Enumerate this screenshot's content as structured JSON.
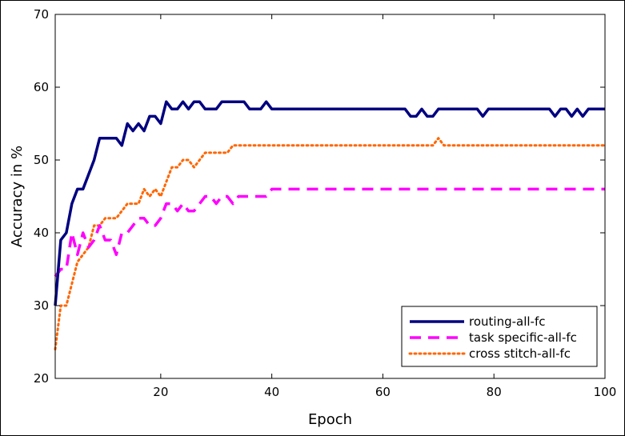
{
  "chart_data": {
    "type": "line",
    "title": "",
    "xlabel": "Epoch",
    "ylabel": "Accuracy in %",
    "xlim": [
      1,
      100
    ],
    "ylim": [
      20,
      70
    ],
    "xticks": [
      20,
      40,
      60,
      80,
      100
    ],
    "yticks": [
      20,
      30,
      40,
      50,
      60,
      70
    ],
    "grid": false,
    "legend_position": "bottom-right",
    "x": [
      1,
      2,
      3,
      4,
      5,
      6,
      7,
      8,
      9,
      10,
      11,
      12,
      13,
      14,
      15,
      16,
      17,
      18,
      19,
      20,
      21,
      22,
      23,
      24,
      25,
      26,
      27,
      28,
      29,
      30,
      31,
      32,
      33,
      34,
      35,
      36,
      37,
      38,
      39,
      40,
      41,
      42,
      43,
      44,
      45,
      46,
      47,
      48,
      49,
      50,
      51,
      52,
      53,
      54,
      55,
      56,
      57,
      58,
      59,
      60,
      61,
      62,
      63,
      64,
      65,
      66,
      67,
      68,
      69,
      70,
      71,
      72,
      73,
      74,
      75,
      76,
      77,
      78,
      79,
      80,
      81,
      82,
      83,
      84,
      85,
      86,
      87,
      88,
      89,
      90,
      91,
      92,
      93,
      94,
      95,
      96,
      97,
      98,
      99,
      100
    ],
    "series": [
      {
        "name": "routing-all-fc",
        "color": "#000080",
        "style": "solid",
        "values": [
          30,
          39,
          40,
          44,
          46,
          46,
          48,
          50,
          53,
          53,
          53,
          53,
          52,
          55,
          54,
          55,
          54,
          56,
          56,
          55,
          58,
          57,
          57,
          58,
          57,
          58,
          58,
          57,
          57,
          57,
          58,
          58,
          58,
          58,
          58,
          57,
          57,
          57,
          58,
          57,
          57,
          57,
          57,
          57,
          57,
          57,
          57,
          57,
          57,
          57,
          57,
          57,
          57,
          57,
          57,
          57,
          57,
          57,
          57,
          57,
          57,
          57,
          57,
          57,
          56,
          56,
          57,
          56,
          56,
          57,
          57,
          57,
          57,
          57,
          57,
          57,
          57,
          56,
          57,
          57,
          57,
          57,
          57,
          57,
          57,
          57,
          57,
          57,
          57,
          57,
          56,
          57,
          57,
          56,
          57,
          56,
          57,
          57,
          57,
          57
        ]
      },
      {
        "name": "task specific-all-fc",
        "color": "#ff00ff",
        "style": "dashed",
        "values": [
          34,
          35,
          35,
          40,
          37,
          40,
          38,
          39,
          41,
          39,
          39,
          37,
          40,
          40,
          41,
          42,
          42,
          41,
          41,
          42,
          44,
          44,
          43,
          44,
          43,
          43,
          44,
          45,
          45,
          44,
          45,
          45,
          44,
          45,
          45,
          45,
          45,
          45,
          45,
          46,
          46,
          46,
          46,
          46,
          46,
          46,
          46,
          46,
          46,
          46,
          46,
          46,
          46,
          46,
          46,
          46,
          46,
          46,
          46,
          46,
          46,
          46,
          46,
          46,
          46,
          46,
          46,
          46,
          46,
          46,
          46,
          46,
          46,
          46,
          46,
          46,
          46,
          46,
          46,
          46,
          46,
          46,
          46,
          46,
          46,
          46,
          46,
          46,
          46,
          46,
          46,
          46,
          46,
          46,
          46,
          46,
          46,
          46,
          46,
          46
        ]
      },
      {
        "name": "cross stitch-all-fc",
        "color": "#ff6600",
        "style": "dotted",
        "values": [
          24,
          30,
          30,
          33,
          36,
          37,
          38,
          41,
          41,
          42,
          42,
          42,
          43,
          44,
          44,
          44,
          46,
          45,
          46,
          45,
          47,
          49,
          49,
          50,
          50,
          49,
          50,
          51,
          51,
          51,
          51,
          51,
          52,
          52,
          52,
          52,
          52,
          52,
          52,
          52,
          52,
          52,
          52,
          52,
          52,
          52,
          52,
          52,
          52,
          52,
          52,
          52,
          52,
          52,
          52,
          52,
          52,
          52,
          52,
          52,
          52,
          52,
          52,
          52,
          52,
          52,
          52,
          52,
          52,
          53,
          52,
          52,
          52,
          52,
          52,
          52,
          52,
          52,
          52,
          52,
          52,
          52,
          52,
          52,
          52,
          52,
          52,
          52,
          52,
          52,
          52,
          52,
          52,
          52,
          52,
          52,
          52,
          52,
          52,
          52
        ]
      }
    ]
  }
}
